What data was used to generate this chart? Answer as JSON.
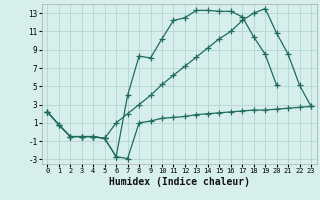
{
  "xlabel": "Humidex (Indice chaleur)",
  "xlim": [
    -0.5,
    23.5
  ],
  "ylim": [
    -3.5,
    14.0
  ],
  "yticks": [
    -3,
    -1,
    1,
    3,
    5,
    7,
    9,
    11,
    13
  ],
  "xticks": [
    0,
    1,
    2,
    3,
    4,
    5,
    6,
    7,
    8,
    9,
    10,
    11,
    12,
    13,
    14,
    15,
    16,
    17,
    18,
    19,
    20,
    21,
    22,
    23
  ],
  "bg_color": "#d6eeec",
  "grid_color": "#aed0cc",
  "line_color": "#1f6b5e",
  "line1_x": [
    0,
    1,
    2,
    3,
    4,
    5,
    6,
    7,
    8,
    9,
    10,
    11,
    12,
    13,
    14,
    15,
    16,
    17,
    18,
    19,
    20,
    21,
    22,
    23
  ],
  "line1_y": [
    2.2,
    0.8,
    -0.5,
    -0.5,
    -0.5,
    -0.7,
    -2.7,
    -2.9,
    1.0,
    1.2,
    1.5,
    1.6,
    1.7,
    1.9,
    2.0,
    2.1,
    2.2,
    2.3,
    2.4,
    2.4,
    2.5,
    2.6,
    2.7,
    2.8
  ],
  "line2_x": [
    0,
    1,
    2,
    3,
    4,
    5,
    6,
    7,
    8,
    9,
    10,
    11,
    12,
    13,
    14,
    15,
    16,
    17,
    18,
    19,
    20
  ],
  "line2_y": [
    2.2,
    0.8,
    -0.5,
    -0.5,
    -0.5,
    -0.7,
    -2.7,
    4.0,
    8.3,
    8.1,
    10.2,
    12.2,
    12.5,
    13.3,
    13.3,
    13.2,
    13.2,
    12.6,
    10.4,
    8.5,
    5.1
  ],
  "line3_x": [
    0,
    1,
    2,
    3,
    4,
    5,
    6,
    7,
    8,
    9,
    10,
    11,
    12,
    13,
    14,
    15,
    16,
    17,
    18,
    19,
    20,
    21,
    22,
    23
  ],
  "line3_y": [
    2.2,
    0.8,
    -0.5,
    -0.5,
    -0.5,
    -0.7,
    1.0,
    2.0,
    3.0,
    4.0,
    5.2,
    6.2,
    7.2,
    8.2,
    9.2,
    10.2,
    11.0,
    12.2,
    13.0,
    13.5,
    10.8,
    8.5,
    5.1,
    2.8
  ]
}
